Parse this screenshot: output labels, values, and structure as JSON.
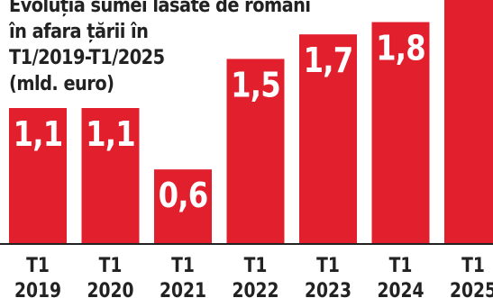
{
  "colors": {
    "bar": "#e2202d",
    "label_text": "#ffffff",
    "title_text": "#222222",
    "tick_text": "#222222",
    "baseline": "#222222"
  },
  "title_lines": [
    "Evoluția sumei lăsate de români",
    "în afara țării în",
    "T1/2019-T1/2025",
    "(mld. euro)"
  ],
  "chart_data": {
    "type": "bar",
    "title": "Evoluția sumei lăsate de români în afara țării în T1/2019-T1/2025 (mld. euro)",
    "categories": [
      "T1 2019",
      "T1 2020",
      "T1 2021",
      "T1 2022",
      "T1 2023",
      "T1 2024",
      "T1 2025"
    ],
    "tick_lines": [
      [
        "T1",
        "2019"
      ],
      [
        "T1",
        "2020"
      ],
      [
        "T1",
        "2021"
      ],
      [
        "T1",
        "2022"
      ],
      [
        "T1",
        "2023"
      ],
      [
        "T1",
        "2024"
      ],
      [
        "T1",
        "2025"
      ]
    ],
    "values": [
      1.1,
      1.1,
      0.6,
      1.5,
      1.7,
      1.8,
      2.0
    ],
    "data_labels": [
      "1,1",
      "1,1",
      "0,6",
      "1,5",
      "1,7",
      "1,8",
      ""
    ],
    "xlabel": "",
    "ylabel": "",
    "ylim": [
      0,
      2.0
    ],
    "grid": false,
    "legend": "none"
  }
}
